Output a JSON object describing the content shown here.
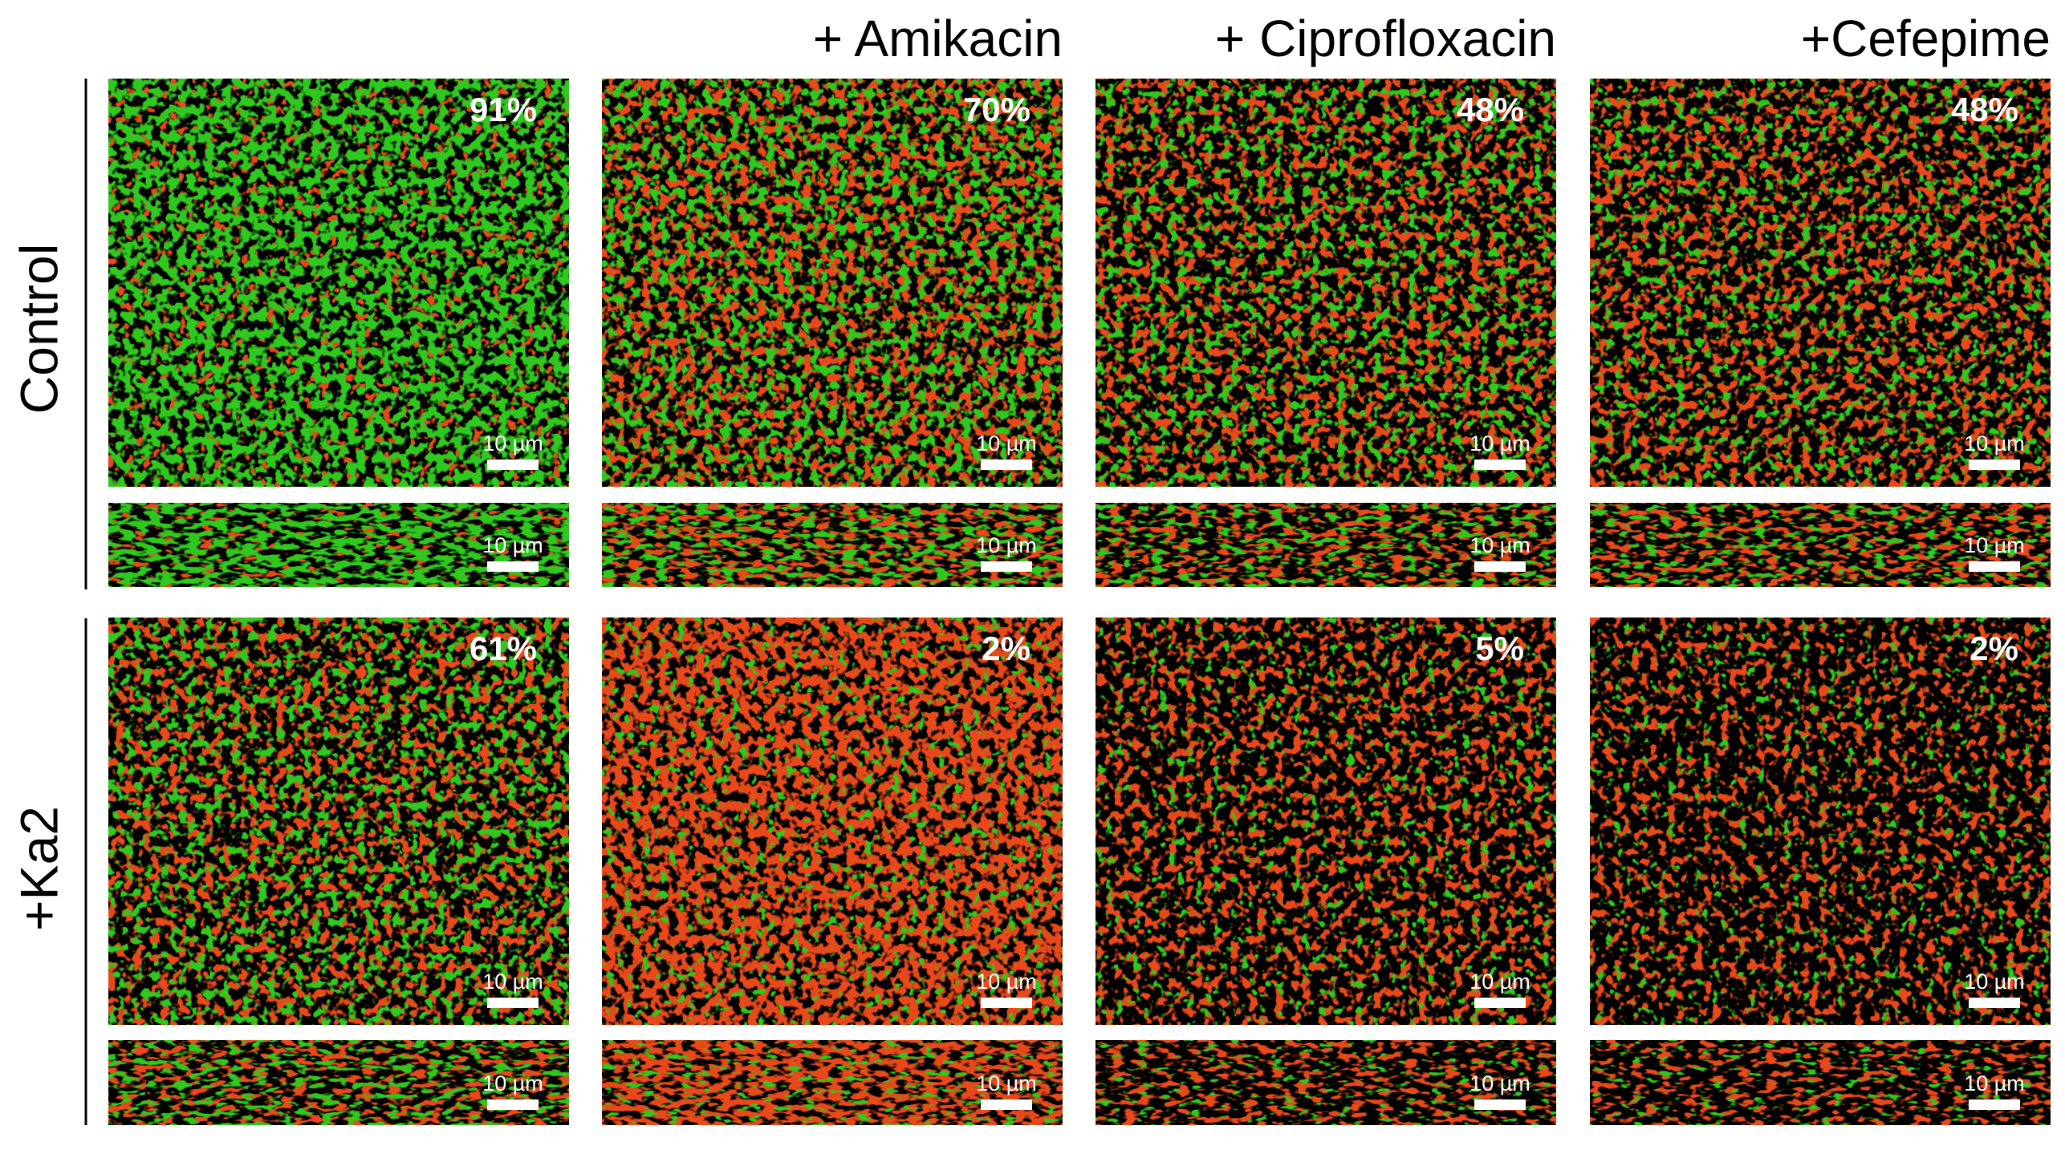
{
  "column_headers": [
    "+ Amikacin",
    "+ Ciprofloxacin",
    "+Cefepime"
  ],
  "rows": [
    {
      "label": "Control",
      "panels": [
        {
          "percent": "91%",
          "scale_top": "10 µm",
          "scale_side": "10 µm"
        },
        {
          "percent": "70%",
          "scale_top": "10 µm",
          "scale_side": "10 µm"
        },
        {
          "percent": "48%",
          "scale_top": "10 µm",
          "scale_side": "10 µm"
        },
        {
          "percent": "48%",
          "scale_top": "10 µm",
          "scale_side": "10 µm"
        }
      ]
    },
    {
      "label": "+Ka2",
      "panels": [
        {
          "percent": "61%",
          "scale_top": "10 µm",
          "scale_side": "10 µm"
        },
        {
          "percent": "2%",
          "scale_top": "10 µm",
          "scale_side": "10 µm"
        },
        {
          "percent": "5%",
          "scale_top": "10 µm",
          "scale_side": "10 µm"
        },
        {
          "percent": "2%",
          "scale_top": "10 µm",
          "scale_side": "10 µm"
        }
      ]
    }
  ]
}
